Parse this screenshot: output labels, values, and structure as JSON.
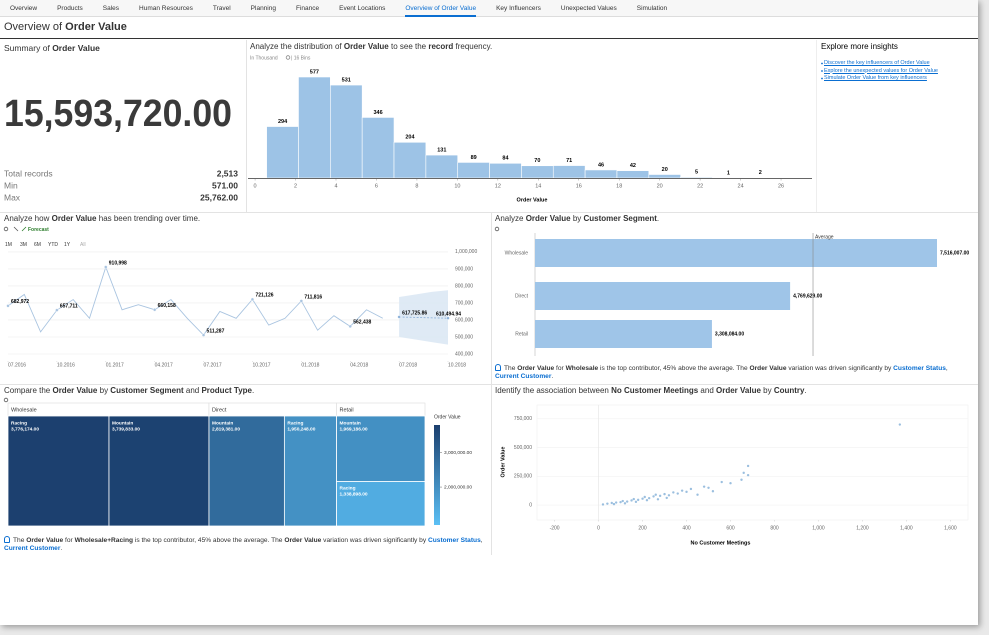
{
  "tabs": {
    "items": [
      "Overview",
      "Products",
      "Sales",
      "Human Resources",
      "Travel",
      "Planning",
      "Finance",
      "Event Locations",
      "Overview of Order Value",
      "Key Influencers",
      "Unexpected Values",
      "Simulation"
    ],
    "active": 8
  },
  "page_title": [
    {
      "text": "Overview of "
    },
    {
      "text": "Order Value",
      "bold": true
    }
  ],
  "summary": {
    "title": [
      {
        "text": "Summary of "
      },
      {
        "text": "Order Value",
        "bold": true
      }
    ],
    "total": "15,593,720.00",
    "stats": [
      {
        "label": "Total records",
        "value": "2,513"
      },
      {
        "label": "Min",
        "value": "571.00"
      },
      {
        "label": "Max",
        "value": "25,762.00"
      }
    ]
  },
  "histogram": {
    "type": "histogram",
    "title": [
      {
        "text": "Analyze the distribution of "
      },
      {
        "text": "Order Value",
        "bold": true
      },
      {
        "text": " to see the "
      },
      {
        "text": "record",
        "bold": true
      },
      {
        "text": " frequency."
      }
    ],
    "unit": "In Thousand",
    "bins_note": "| 16 Bins",
    "bins": [
      0.571,
      2.145,
      3.72,
      5.294,
      6.868,
      8.443,
      10.017,
      11.591,
      13.166,
      14.74,
      16.314,
      17.889,
      19.463,
      21.037,
      22.612,
      24.186,
      25.762
    ],
    "counts": [
      294,
      577,
      531,
      346,
      204,
      131,
      89,
      84,
      70,
      71,
      46,
      42,
      20,
      5,
      1,
      2
    ],
    "xlim": [
      -0.35,
      27.53
    ],
    "xticks": [
      0,
      2,
      4,
      6,
      8,
      10,
      12,
      14,
      16,
      18,
      20,
      22,
      24,
      26
    ],
    "xlabel": "Order Value",
    "color": "#9dc3e6"
  },
  "insights": {
    "title": "Explore more insights",
    "links": [
      "Discover the key influencers of Order Value",
      "Explore the unexpected values for Order Value",
      "Simulate Order Value from key influencers"
    ]
  },
  "trend": {
    "type": "line",
    "title": [
      {
        "text": "Analyze how "
      },
      {
        "text": "Order Value",
        "bold": true
      },
      {
        "text": " has been trending over time."
      }
    ],
    "forecast_label": "Forecast",
    "ranges": [
      "1M",
      "3M",
      "6M",
      "YTD",
      "1Y",
      "All"
    ],
    "categories": [
      "07.2016",
      null,
      null,
      "10.2016",
      null,
      null,
      "01.2017",
      null,
      null,
      "04.2017",
      null,
      null,
      "07.2017",
      null,
      null,
      "10.2017",
      null,
      null,
      "01.2018",
      null,
      null,
      "04.2018",
      null,
      null,
      "07.2018",
      null,
      null,
      "10.2018"
    ],
    "series": [
      {
        "color": "#a9c4e0",
        "values": [
          682972,
          750000,
          530000,
          657711,
          720000,
          610000,
          910998,
          660000,
          690000,
          660158,
          720000,
          610000,
          511287,
          650000,
          610000,
          721126,
          570000,
          610000,
          711816,
          540000,
          625000,
          562438,
          660000,
          610000,
          null,
          null,
          null,
          null
        ],
        "value_labels": [
          "682,972",
          null,
          null,
          "657,711",
          null,
          null,
          "910,998",
          null,
          null,
          "660,158",
          null,
          null,
          "511,287",
          null,
          null,
          "721,126",
          null,
          null,
          "711,816",
          null,
          null,
          "562,438",
          null,
          null,
          null,
          null,
          null,
          null
        ]
      },
      {
        "name": "Forecast",
        "color": "#8fb3da",
        "band_color": "#dce8f4",
        "values": [
          null,
          null,
          null,
          null,
          null,
          null,
          null,
          null,
          null,
          null,
          null,
          null,
          null,
          null,
          null,
          null,
          null,
          null,
          null,
          null,
          null,
          null,
          null,
          null,
          617725.86,
          615000,
          612500,
          610494.94
        ],
        "value_labels": [
          null,
          null,
          null,
          null,
          null,
          null,
          null,
          null,
          null,
          null,
          null,
          null,
          null,
          null,
          null,
          null,
          null,
          null,
          null,
          null,
          null,
          null,
          null,
          null,
          "617,725.86",
          null,
          null,
          "610,494.94"
        ],
        "lower": [
          null,
          null,
          null,
          null,
          null,
          null,
          null,
          null,
          null,
          null,
          null,
          null,
          null,
          null,
          null,
          null,
          null,
          null,
          null,
          null,
          null,
          null,
          null,
          null,
          500000,
          485000,
          470000,
          455000
        ],
        "upper": [
          null,
          null,
          null,
          null,
          null,
          null,
          null,
          null,
          null,
          null,
          null,
          null,
          null,
          null,
          null,
          null,
          null,
          null,
          null,
          null,
          null,
          null,
          null,
          null,
          735000,
          750000,
          765000,
          775000
        ]
      }
    ],
    "ylim": [
      353000,
      1023000
    ],
    "yticks": [
      {
        "value": 400000,
        "label": "400,000"
      },
      {
        "value": 500000,
        "label": "500,000"
      },
      {
        "value": 600000,
        "label": "600,000"
      },
      {
        "value": 700000,
        "label": "700,000"
      },
      {
        "value": 800000,
        "label": "800,000"
      },
      {
        "value": 900000,
        "label": "900,000"
      },
      {
        "value": 1000000,
        "label": "1,000,000"
      }
    ],
    "grid": true
  },
  "segment": {
    "type": "bar",
    "orientation": "horizontal",
    "title": [
      {
        "text": "Analyze "
      },
      {
        "text": "Order Value",
        "bold": true
      },
      {
        "text": " by "
      },
      {
        "text": "Customer Segment",
        "bold": true
      },
      {
        "text": "."
      }
    ],
    "categories": [
      "Wholesale",
      "Direct",
      "Retail"
    ],
    "values": [
      7516007,
      4769629,
      3308084
    ],
    "value_labels": [
      "7,516,007.00",
      "4,769,629.00",
      "3,308,084.00"
    ],
    "average": 5197906.67,
    "average_label": "Average",
    "color": "#9fc5e8",
    "insight": [
      {
        "text": "The "
      },
      {
        "text": "Order Value",
        "bold": true
      },
      {
        "text": " for "
      },
      {
        "text": "Wholesale",
        "bold": true
      },
      {
        "text": " is the top contributor, 45% above the average. The "
      },
      {
        "text": "Order Value",
        "bold": true
      },
      {
        "text": " variation was driven significantly by "
      },
      {
        "text": "Customer Status",
        "link": true
      },
      {
        "text": ", "
      },
      {
        "text": "Current Customer",
        "link": true
      },
      {
        "text": "."
      }
    ]
  },
  "treemap": {
    "type": "treemap",
    "title": [
      {
        "text": "Compare the "
      },
      {
        "text": "Order Value",
        "bold": true
      },
      {
        "text": " by "
      },
      {
        "text": "Customer Segment",
        "bold": true
      },
      {
        "text": " and "
      },
      {
        "text": "Product Type",
        "bold": true
      },
      {
        "text": "."
      }
    ],
    "groups": [
      {
        "name": "Wholesale",
        "children": [
          {
            "name": "Racing",
            "value": 3776174,
            "value_label": "3,776,174.00"
          },
          {
            "name": "Mountain",
            "value": 3739833,
            "value_label": "3,739,833.00"
          }
        ]
      },
      {
        "name": "Direct",
        "children": [
          {
            "name": "Mountain",
            "value": 2819381,
            "value_label": "2,819,381.00"
          },
          {
            "name": "Racing",
            "value": 1950248,
            "value_label": "1,950,248.00"
          }
        ]
      },
      {
        "name": "Retail",
        "children": [
          {
            "name": "Mountain",
            "value": 1969186,
            "value_label": "1,969,186.00"
          },
          {
            "name": "Racing",
            "value": 1338898,
            "value_label": "1,338,898.00"
          }
        ]
      }
    ],
    "legend_title": "Order Value",
    "colorlim": [
      900000,
      3800000
    ],
    "colorticks": [
      {
        "value": 3000000,
        "label": "3,000,000.00"
      },
      {
        "value": 2000000,
        "label": "2,000,000.00"
      }
    ],
    "colors": [
      "#5bc0f5",
      "#1b3f6e"
    ],
    "insight": [
      {
        "text": "The "
      },
      {
        "text": "Order Value",
        "bold": true
      },
      {
        "text": " for "
      },
      {
        "text": "Wholesale+Racing",
        "bold": true
      },
      {
        "text": " is the top contributor, 45% above the average. The "
      },
      {
        "text": "Order Value",
        "bold": true
      },
      {
        "text": " variation was driven significantly by "
      },
      {
        "text": "Customer Status",
        "link": true
      },
      {
        "text": ", "
      },
      {
        "text": "Current Customer",
        "link": true
      },
      {
        "text": "."
      }
    ]
  },
  "scatter": {
    "type": "scatter",
    "title": [
      {
        "text": "Identify the association between "
      },
      {
        "text": "No Customer Meetings",
        "bold": true
      },
      {
        "text": " and "
      },
      {
        "text": "Order Value",
        "bold": true
      },
      {
        "text": " by "
      },
      {
        "text": "Country",
        "bold": true
      },
      {
        "text": "."
      }
    ],
    "x": [
      20,
      40,
      60,
      80,
      100,
      110,
      130,
      150,
      160,
      180,
      200,
      210,
      230,
      250,
      260,
      280,
      300,
      320,
      340,
      360,
      380,
      400,
      420,
      450,
      480,
      500,
      520,
      560,
      600,
      650,
      660,
      680,
      680,
      1370,
      70,
      120,
      170,
      220,
      270,
      310
    ],
    "y": [
      5000,
      12000,
      18000,
      22000,
      25000,
      35000,
      30000,
      40000,
      52000,
      45000,
      55000,
      70000,
      60000,
      75000,
      90000,
      80000,
      95000,
      85000,
      110000,
      100000,
      125000,
      115000,
      140000,
      90000,
      160000,
      150000,
      120000,
      200000,
      190000,
      220000,
      280000,
      340000,
      260000,
      700000,
      8000,
      15000,
      28000,
      42000,
      50000,
      62000
    ],
    "xlim": [
      -280,
      1680
    ],
    "ylim": [
      -130000,
      870000
    ],
    "xticks": [
      -200,
      0,
      200,
      400,
      600,
      800,
      {
        "value": 1000,
        "label": "1,000"
      },
      {
        "value": 1200,
        "label": "1,200"
      },
      {
        "value": 1400,
        "label": "1,400"
      },
      {
        "value": 1600,
        "label": "1,600"
      }
    ],
    "yticks": [
      0,
      {
        "value": 250000,
        "label": "250,000"
      },
      {
        "value": 500000,
        "label": "500,000"
      },
      {
        "value": 750000,
        "label": "750,000"
      }
    ],
    "xlabel": "No Customer Meetings",
    "ylabel": "Order Value",
    "color": "#8ab4d9"
  }
}
